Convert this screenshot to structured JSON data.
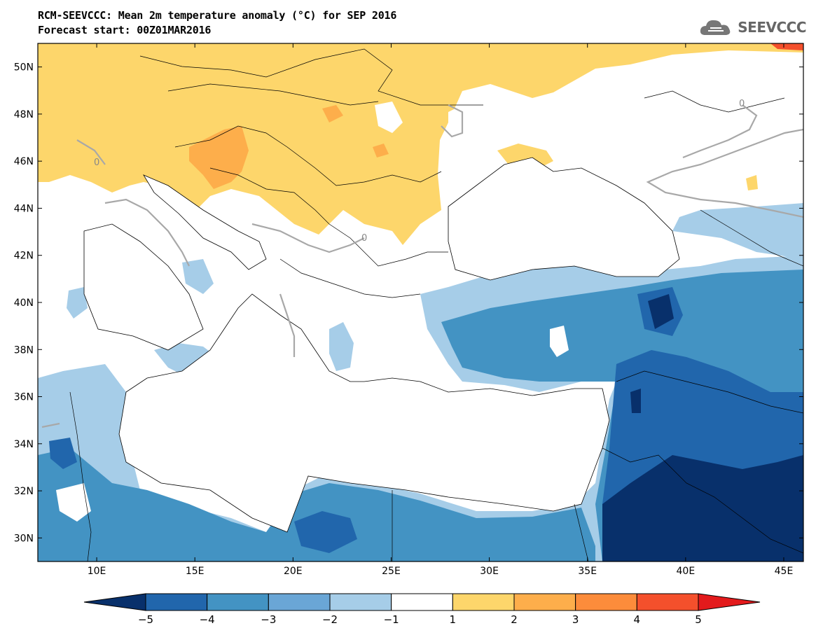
{
  "header": {
    "title_line1": "RCM-SEEVCCC: Mean 2m temperature anomaly (°C) for SEP 2016",
    "title_line2": "Forecast start: 00Z01MAR2016"
  },
  "logo": {
    "text": "SEEVCCC",
    "icon": "cloud-icon"
  },
  "map": {
    "lon_range": [
      7,
      46
    ],
    "lat_range": [
      29,
      51
    ],
    "lon_ticks": [
      "10E",
      "15E",
      "20E",
      "25E",
      "30E",
      "35E",
      "40E",
      "45E"
    ],
    "lat_ticks": [
      "50N",
      "48N",
      "46N",
      "44N",
      "42N",
      "40N",
      "38N",
      "36N",
      "34N",
      "32N",
      "30N"
    ],
    "contour_label": "0"
  },
  "colorbar": {
    "labels": [
      "−5",
      "−4",
      "−3",
      "−2",
      "−1",
      "1",
      "2",
      "3",
      "4",
      "5"
    ],
    "colors": [
      "#08306b",
      "#2166ac",
      "#4393c3",
      "#6aa6d6",
      "#a6cde8",
      "#ffffff",
      "#fdd66b",
      "#fdae4b",
      "#fc8c3b",
      "#f4502c",
      "#e31a1c"
    ]
  }
}
